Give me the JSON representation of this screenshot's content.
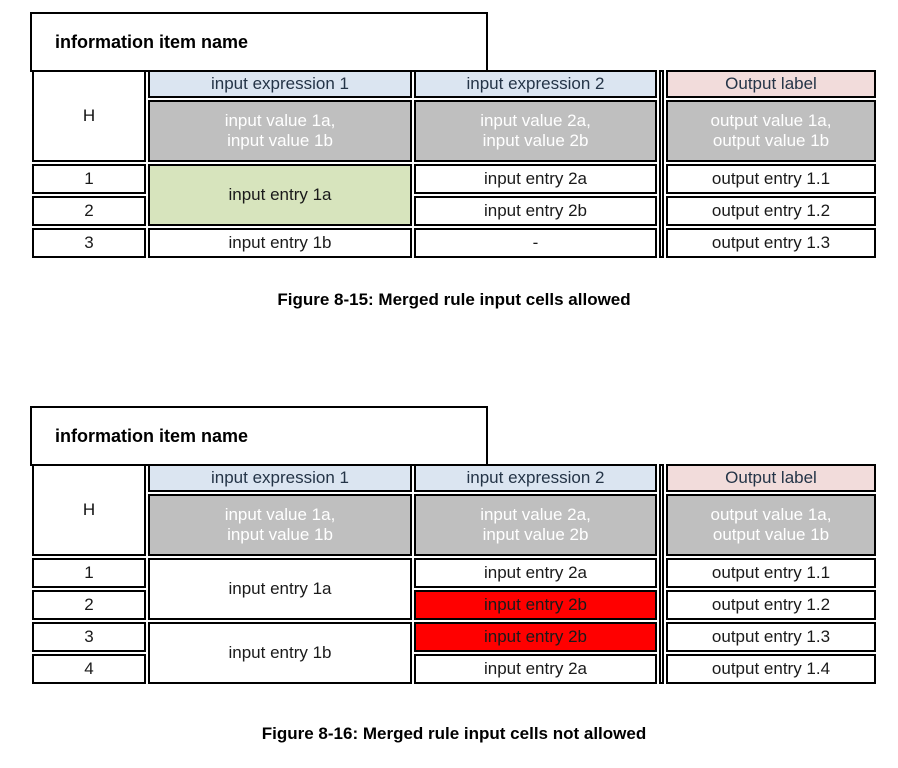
{
  "colors": {
    "input_header_bg": "#dbe5f1",
    "output_header_bg": "#f2dcdb",
    "values_row_bg": "#bfbfbf",
    "merged_allowed_bg": "#d7e4bd",
    "violation_bg": "#ff0000"
  },
  "figure1": {
    "info_box_label": "information item name",
    "hit_policy_label": "H",
    "input_headers": [
      "input expression 1",
      "input expression 2"
    ],
    "output_header": "Output label",
    "input_values": [
      [
        "input value 1a,",
        "input value 1b"
      ],
      [
        "input value 2a,",
        "input value 2b"
      ]
    ],
    "output_values": [
      "output value 1a,",
      "output value 1b"
    ],
    "rule_numbers": [
      "1",
      "2",
      "3"
    ],
    "input1_entries": [
      "input entry 1a",
      "input entry 1b"
    ],
    "input2_entries": [
      "input entry 2a",
      "input entry 2b",
      "-"
    ],
    "output_entries": [
      "output entry 1.1",
      "output entry 1.2",
      "output entry 1.3"
    ],
    "caption": "Figure 8-15: Merged rule input cells allowed"
  },
  "figure2": {
    "info_box_label": "information item name",
    "hit_policy_label": "H",
    "input_headers": [
      "input expression 1",
      "input expression 2"
    ],
    "output_header": "Output label",
    "input_values": [
      [
        "input value 1a,",
        "input value 1b"
      ],
      [
        "input value 2a,",
        "input value 2b"
      ]
    ],
    "output_values": [
      "output value 1a,",
      "output value 1b"
    ],
    "rule_numbers": [
      "1",
      "2",
      "3",
      "4"
    ],
    "input1_entries": [
      "input entry 1a",
      "input entry 1b"
    ],
    "input2_entries": [
      "input entry 2a",
      "input entry 2b",
      "input entry 2b",
      "input entry 2a"
    ],
    "output_entries": [
      "output entry 1.1",
      "output entry 1.2",
      "output entry 1.3",
      "output entry 1.4"
    ],
    "caption": "Figure 8-16: Merged rule input cells not allowed"
  }
}
